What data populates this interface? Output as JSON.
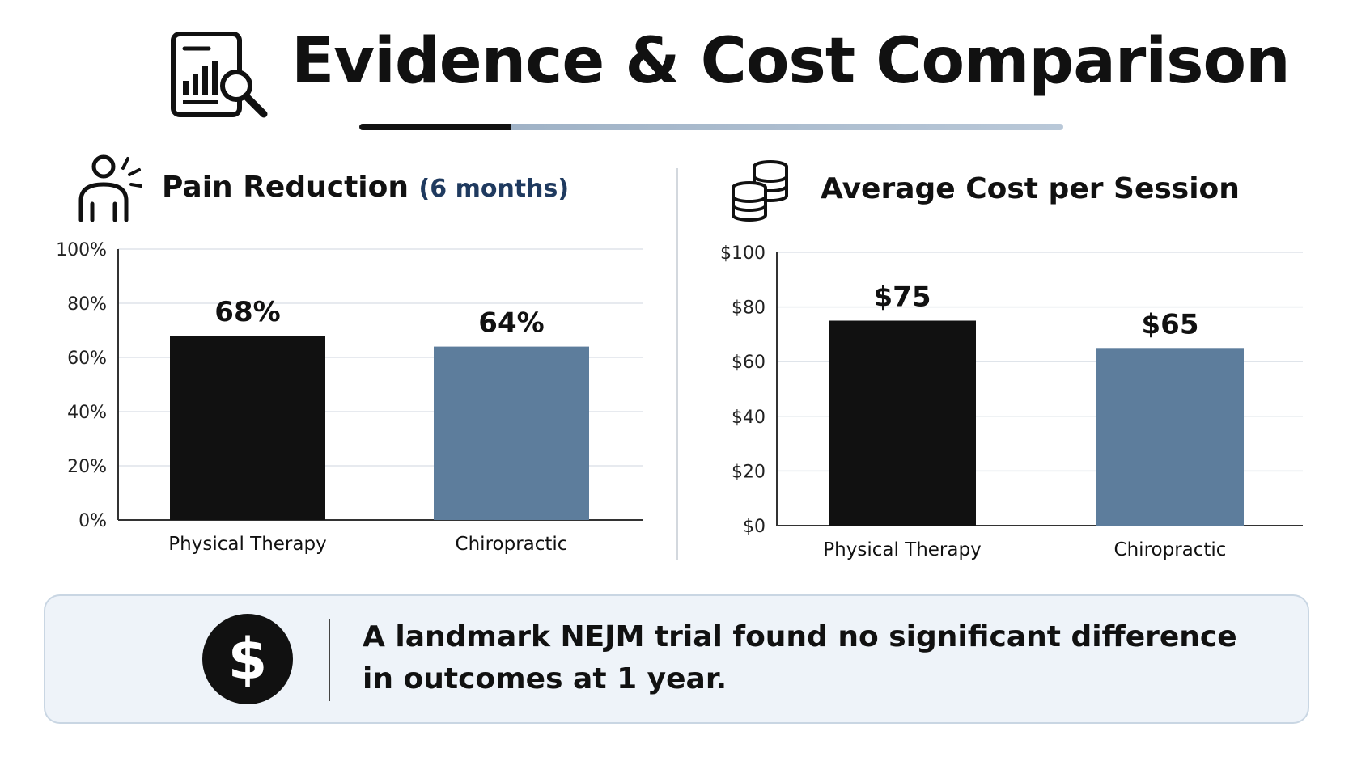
{
  "header": {
    "title": "Evidence & Cost Comparison",
    "icon": "report-magnifier-icon"
  },
  "colors": {
    "physical_therapy": "#111111",
    "chiropractic": "#5d7d9c",
    "note_background": "#eef3f9"
  },
  "chart_data": [
    {
      "type": "bar",
      "title": "Pain Reduction",
      "subtitle": "(6 months)",
      "icon": "person-pain-icon",
      "categories": [
        "Physical Therapy",
        "Chiropractic"
      ],
      "values": [
        68,
        64
      ],
      "value_labels": [
        "68%",
        "64%"
      ],
      "yticks": [
        0,
        20,
        40,
        60,
        80,
        100
      ],
      "ytick_labels": [
        "0%",
        "20%",
        "40%",
        "60%",
        "80%",
        "100%"
      ],
      "ylim": [
        0,
        100
      ],
      "grid": true
    },
    {
      "type": "bar",
      "title": "Average Cost per Session",
      "icon": "coin-stack-icon",
      "categories": [
        "Physical Therapy",
        "Chiropractic"
      ],
      "values": [
        75,
        65
      ],
      "value_labels": [
        "$75",
        "$65"
      ],
      "yticks": [
        0,
        20,
        40,
        60,
        80,
        100
      ],
      "ytick_labels": [
        "$0",
        "$20",
        "$40",
        "$60",
        "$80",
        "$100"
      ],
      "ylim": [
        0,
        100
      ],
      "grid": true
    }
  ],
  "note": {
    "icon": "dollar-circle-icon",
    "text": "A landmark NEJM trial found no significant difference in outcomes at 1 year."
  }
}
